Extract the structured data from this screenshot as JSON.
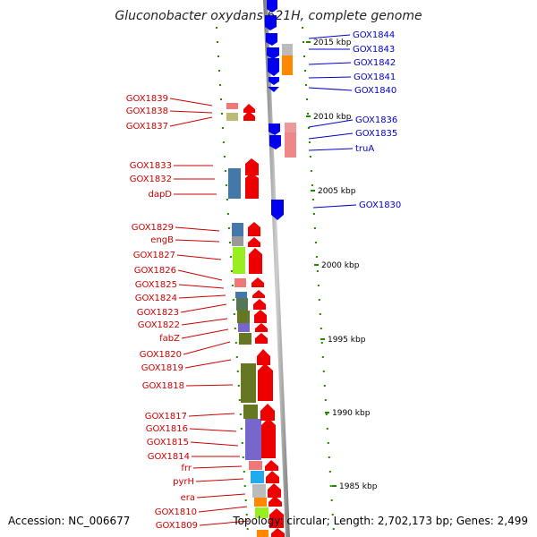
{
  "title": "Gluconobacter oxydans 621H, complete genome",
  "footer": {
    "accession": "Accession: NC_006677",
    "topology": "Topology: circular; Length: 2,702,173 bp; Genes: 2,499"
  },
  "colors": {
    "forward_arrow": "#ee0000",
    "reverse_arrow": "#0000ee",
    "label_forward": "#cc0000",
    "label_reverse": "#0000cc",
    "tick": "#228800"
  },
  "scale_labels": [
    "2015 kbp",
    "2010 kbp",
    "2005 kbp",
    "2000 kbp",
    "1995 kbp",
    "1990 kbp",
    "1985 kbp"
  ],
  "reverse_genes": [
    "GOX1844",
    "GOX1843",
    "GOX1842",
    "GOX1841",
    "GOX1840",
    "GOX1836",
    "GOX1835",
    "truA",
    "GOX1830"
  ],
  "forward_genes": [
    "GOX1839",
    "GOX1838",
    "GOX1837",
    "GOX1833",
    "GOX1832",
    "dapD",
    "GOX1829",
    "engB",
    "GOX1827",
    "GOX1826",
    "GOX1825",
    "GOX1824",
    "GOX1823",
    "GOX1822",
    "fabZ",
    "GOX1820",
    "GOX1819",
    "GOX1818",
    "GOX1817",
    "GOX1816",
    "GOX1815",
    "GOX1814",
    "frr",
    "pyrH",
    "era",
    "GOX1810",
    "GOX1809"
  ],
  "feature_colors": [
    "#ee7777",
    "#bbbb77",
    "#4477aa",
    "#999999",
    "#99ee22",
    "#557755",
    "#667722",
    "#7766cc",
    "#ff8800",
    "#22aaee",
    "#bbbbbb",
    "#ee9999"
  ]
}
